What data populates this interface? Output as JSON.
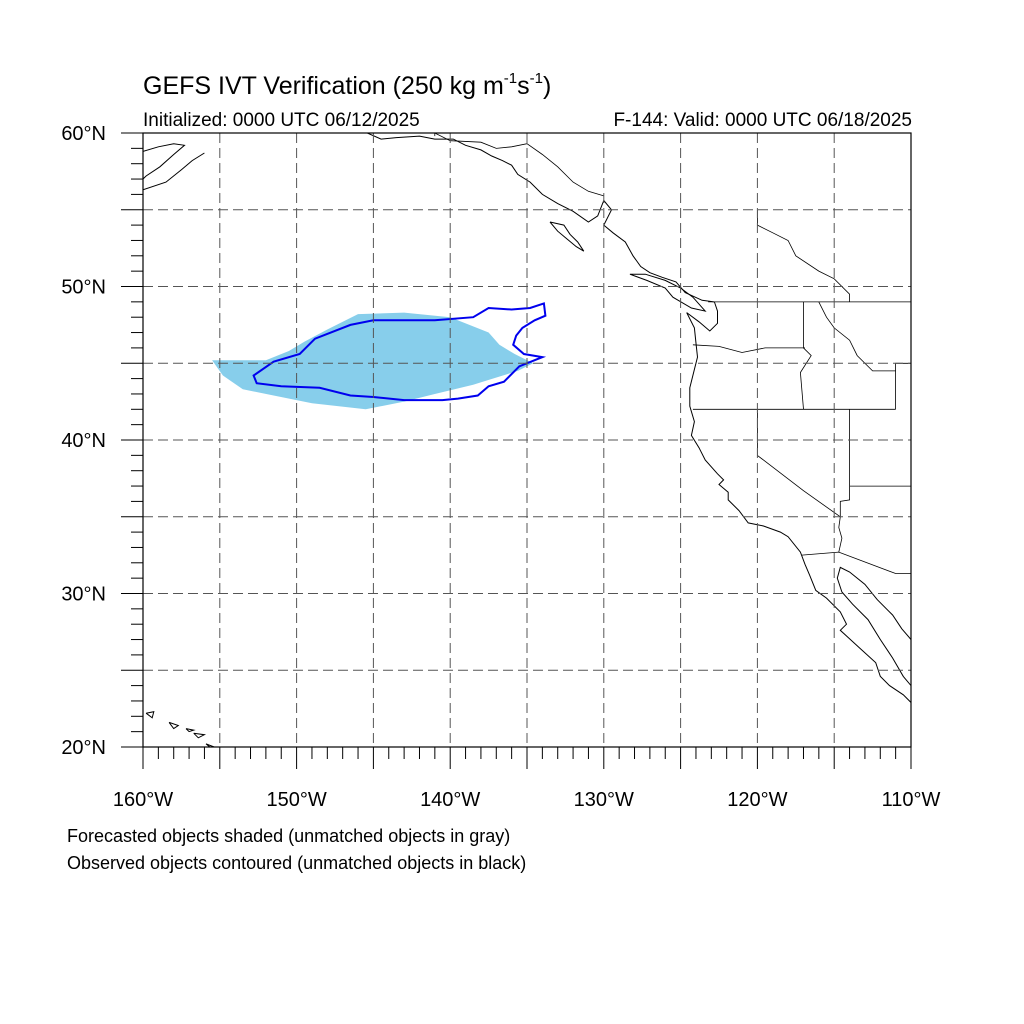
{
  "header": {
    "title_main": "GEFS IVT Verification (250 kg m",
    "title_exp1": "-1",
    "title_mid": "s",
    "title_exp2": "-1",
    "title_end": ")",
    "initialized": "Initialized: 0000 UTC 06/12/2025",
    "valid": "F-144: Valid: 0000 UTC 06/18/2025"
  },
  "map": {
    "projection": "cylindrical-equidistant",
    "lon_range": [
      -160,
      -110
    ],
    "lat_range": [
      20,
      60
    ],
    "gridlines": "dashed",
    "lon_labels": [
      {
        "lon": -160,
        "text": "160°W"
      },
      {
        "lon": -150,
        "text": "150°W"
      },
      {
        "lon": -140,
        "text": "140°W"
      },
      {
        "lon": -130,
        "text": "130°W"
      },
      {
        "lon": -120,
        "text": "120°W"
      },
      {
        "lon": -110,
        "text": "110°W"
      }
    ],
    "lat_labels": [
      {
        "lat": 60,
        "text": "60°N"
      },
      {
        "lat": 50,
        "text": "50°N"
      },
      {
        "lat": 40,
        "text": "40°N"
      },
      {
        "lat": 30,
        "text": "30°N"
      },
      {
        "lat": 20,
        "text": "20°N"
      }
    ],
    "forecast_object": {
      "fill_color": "#87ceeb",
      "outline": [
        [
          -155.5,
          45.2
        ],
        [
          -152,
          45.2
        ],
        [
          -150.5,
          45.8
        ],
        [
          -149.5,
          46.4
        ],
        [
          -148,
          47.2
        ],
        [
          -146,
          48.2
        ],
        [
          -143,
          48.3
        ],
        [
          -140,
          48.0
        ],
        [
          -137.5,
          47.0
        ],
        [
          -136.8,
          46.2
        ],
        [
          -135.8,
          45.6
        ],
        [
          -134.6,
          45.0
        ],
        [
          -135.6,
          44.5
        ],
        [
          -138.5,
          43.6
        ],
        [
          -141,
          43.0
        ],
        [
          -143,
          42.5
        ],
        [
          -145.5,
          42.0
        ],
        [
          -149,
          42.4
        ],
        [
          -151.5,
          42.9
        ],
        [
          -153.5,
          43.3
        ],
        [
          -154.8,
          44.2
        ]
      ]
    },
    "observed_object": {
      "line_color": "#0000ee",
      "outline": [
        [
          -152.8,
          44.2
        ],
        [
          -151.5,
          45.1
        ],
        [
          -149.8,
          45.6
        ],
        [
          -148.8,
          46.6
        ],
        [
          -146.5,
          47.5
        ],
        [
          -145,
          47.8
        ],
        [
          -141,
          47.8
        ],
        [
          -138.5,
          48.0
        ],
        [
          -137.5,
          48.6
        ],
        [
          -136,
          48.5
        ],
        [
          -134.8,
          48.6
        ],
        [
          -133.9,
          48.9
        ],
        [
          -133.8,
          48.1
        ],
        [
          -134.5,
          47.8
        ],
        [
          -135.3,
          47.3
        ],
        [
          -135.7,
          46.8
        ],
        [
          -135.9,
          46.2
        ],
        [
          -135.2,
          45.6
        ],
        [
          -134.0,
          45.4
        ],
        [
          -135.5,
          44.8
        ],
        [
          -136.5,
          43.8
        ],
        [
          -137.5,
          43.5
        ],
        [
          -138.2,
          42.9
        ],
        [
          -139.5,
          42.7
        ],
        [
          -140.5,
          42.6
        ],
        [
          -141.5,
          42.6
        ],
        [
          -143,
          42.6
        ],
        [
          -145,
          42.8
        ],
        [
          -146.5,
          42.9
        ],
        [
          -148.5,
          43.4
        ],
        [
          -151,
          43.5
        ],
        [
          -152.6,
          43.7
        ]
      ]
    },
    "coast_segments": [
      [
        [
          -160,
          58.8
        ],
        [
          -159,
          59.1
        ],
        [
          -158,
          59.3
        ],
        [
          -157.3,
          59.2
        ],
        [
          -158,
          58.6
        ],
        [
          -158.9,
          57.8
        ],
        [
          -159.8,
          57.2
        ],
        [
          -160,
          57.0
        ]
      ],
      [
        [
          -160,
          56.3
        ],
        [
          -158.5,
          56.8
        ],
        [
          -157.5,
          57.6
        ],
        [
          -156.8,
          58.2
        ],
        [
          -156.0,
          58.7
        ]
      ],
      [
        [
          -145.4,
          60
        ],
        [
          -144.5,
          59.6
        ],
        [
          -143.5,
          59.7
        ],
        [
          -142,
          59.8
        ],
        [
          -141,
          59.6
        ],
        [
          -139.8,
          59.6
        ],
        [
          -139,
          59.2
        ],
        [
          -138,
          58.9
        ],
        [
          -137.3,
          58.5
        ],
        [
          -136.6,
          58.2
        ],
        [
          -136.0,
          57.9
        ],
        [
          -135.6,
          57.3
        ],
        [
          -134.8,
          56.8
        ],
        [
          -134.0,
          56.0
        ],
        [
          -133.0,
          55.4
        ],
        [
          -132.0,
          54.9
        ],
        [
          -131.0,
          54.2
        ],
        [
          -130.4,
          54.6
        ],
        [
          -130.0,
          55.6
        ],
        [
          -129.5,
          55.0
        ],
        [
          -130.0,
          54.0
        ],
        [
          -129.4,
          53.5
        ],
        [
          -128.6,
          52.9
        ],
        [
          -128.1,
          52.0
        ],
        [
          -127.6,
          51.3
        ],
        [
          -127.0,
          50.9
        ],
        [
          -126.2,
          50.6
        ],
        [
          -125.3,
          50.3
        ],
        [
          -124.7,
          49.6
        ],
        [
          -123.6,
          49.1
        ],
        [
          -122.8,
          49.0
        ],
        [
          -122.6,
          48.4
        ],
        [
          -122.6,
          47.6
        ],
        [
          -123.1,
          47.1
        ],
        [
          -123.8,
          47.7
        ],
        [
          -124.6,
          48.3
        ],
        [
          -124.1,
          47.3
        ],
        [
          -124.0,
          46.3
        ],
        [
          -123.9,
          45.4
        ],
        [
          -124.1,
          44.6
        ],
        [
          -124.4,
          43.4
        ],
        [
          -124.4,
          42.2
        ],
        [
          -124.1,
          41.2
        ],
        [
          -124.3,
          40.3
        ],
        [
          -123.8,
          39.5
        ],
        [
          -123.4,
          38.7
        ],
        [
          -122.6,
          37.8
        ],
        [
          -122.2,
          37.4
        ],
        [
          -122.5,
          37.1
        ],
        [
          -121.9,
          36.6
        ],
        [
          -121.9,
          36.1
        ],
        [
          -121.2,
          35.4
        ],
        [
          -120.6,
          34.6
        ],
        [
          -119.6,
          34.4
        ],
        [
          -118.5,
          34.0
        ],
        [
          -118.0,
          33.7
        ],
        [
          -117.2,
          32.7
        ],
        [
          -116.9,
          31.9
        ],
        [
          -116.6,
          31.2
        ],
        [
          -116.2,
          30.2
        ],
        [
          -115.5,
          29.7
        ],
        [
          -114.6,
          28.8
        ],
        [
          -114.2,
          28.0
        ],
        [
          -114.6,
          27.6
        ],
        [
          -113.4,
          26.5
        ],
        [
          -112.3,
          25.5
        ],
        [
          -112.0,
          24.6
        ],
        [
          -111.4,
          24.0
        ],
        [
          -110.5,
          23.4
        ],
        [
          -110.0,
          22.9
        ]
      ],
      [
        [
          -110,
          27.0
        ],
        [
          -110.6,
          27.7
        ],
        [
          -111.2,
          28.6
        ],
        [
          -112.2,
          29.6
        ],
        [
          -113.0,
          30.6
        ],
        [
          -114.0,
          31.4
        ],
        [
          -114.6,
          31.7
        ],
        [
          -114.8,
          31.0
        ],
        [
          -114.5,
          30.1
        ],
        [
          -113.8,
          29.3
        ],
        [
          -112.8,
          28.3
        ],
        [
          -112.0,
          27.0
        ],
        [
          -111.2,
          25.8
        ],
        [
          -110.5,
          24.6
        ],
        [
          -110.0,
          24.0
        ]
      ],
      [
        [
          -133.5,
          54.2
        ],
        [
          -132.6,
          54.0
        ],
        [
          -132.2,
          53.4
        ],
        [
          -131.7,
          52.9
        ],
        [
          -131.3,
          52.3
        ],
        [
          -131.8,
          52.6
        ],
        [
          -132.4,
          53.1
        ],
        [
          -133.0,
          53.6
        ],
        [
          -133.5,
          54.2
        ]
      ],
      [
        [
          -128.3,
          50.8
        ],
        [
          -127.2,
          50.4
        ],
        [
          -126.0,
          49.9
        ],
        [
          -125.5,
          49.3
        ],
        [
          -124.3,
          48.6
        ],
        [
          -123.4,
          48.4
        ],
        [
          -124.2,
          49.3
        ],
        [
          -125.0,
          49.9
        ],
        [
          -126.0,
          50.4
        ],
        [
          -127.3,
          50.8
        ],
        [
          -128.3,
          50.8
        ]
      ],
      [
        [
          -159.8,
          22.2
        ],
        [
          -159.3,
          22.3
        ],
        [
          -159.4,
          21.9
        ],
        [
          -159.8,
          22.2
        ]
      ],
      [
        [
          -158.3,
          21.6
        ],
        [
          -157.7,
          21.4
        ],
        [
          -158.0,
          21.2
        ],
        [
          -158.3,
          21.6
        ]
      ],
      [
        [
          -157.2,
          21.2
        ],
        [
          -156.7,
          21.1
        ],
        [
          -157.0,
          21.0
        ],
        [
          -157.2,
          21.2
        ]
      ],
      [
        [
          -156.7,
          20.9
        ],
        [
          -156.0,
          20.8
        ],
        [
          -156.4,
          20.6
        ],
        [
          -156.7,
          20.9
        ]
      ],
      [
        [
          -155.9,
          20.2
        ],
        [
          -155.1,
          19.9
        ],
        [
          -155.4,
          19.8
        ],
        [
          -155.9,
          20.2
        ]
      ]
    ],
    "border_segments": [
      [
        [
          -141,
          60
        ],
        [
          -141,
          59.8
        ]
      ],
      [
        [
          -141,
          60
        ],
        [
          -140,
          59.5
        ],
        [
          -138,
          59.4
        ],
        [
          -137,
          59.0
        ],
        [
          -136,
          59.1
        ],
        [
          -135,
          59.3
        ],
        [
          -134,
          58.6
        ],
        [
          -133,
          57.8
        ],
        [
          -132,
          56.8
        ],
        [
          -131,
          56.2
        ],
        [
          -130,
          55.9
        ]
      ],
      [
        [
          -123.2,
          49.0
        ],
        [
          -110,
          49.0
        ]
      ],
      [
        [
          -124.2,
          42.0
        ],
        [
          -111,
          42.0
        ]
      ],
      [
        [
          -124.2,
          46.2
        ],
        [
          -122.5,
          46.1
        ],
        [
          -121,
          45.7
        ],
        [
          -119.5,
          46.0
        ],
        [
          -116.9,
          46.0
        ]
      ],
      [
        [
          -117.0,
          49.0
        ],
        [
          -117.0,
          46.0
        ],
        [
          -116.5,
          45.5
        ],
        [
          -117.2,
          44.4
        ],
        [
          -117.0,
          42.0
        ]
      ],
      [
        [
          -120.0,
          42.0
        ],
        [
          -120.0,
          39.0
        ],
        [
          -117.0,
          36.7
        ],
        [
          -114.6,
          35.0
        ]
      ],
      [
        [
          -114.6,
          35.0
        ],
        [
          -114.6,
          36.0
        ],
        [
          -114.0,
          36.1
        ],
        [
          -114.0,
          42.0
        ]
      ],
      [
        [
          -111,
          42.0
        ],
        [
          -111,
          45.0
        ],
        [
          -110,
          45.0
        ]
      ],
      [
        [
          -114.0,
          37.0
        ],
        [
          -110,
          37.0
        ]
      ],
      [
        [
          -114.6,
          35.0
        ],
        [
          -114.7,
          34.3
        ],
        [
          -114.5,
          33.6
        ],
        [
          -114.7,
          32.7
        ]
      ],
      [
        [
          -117.1,
          32.5
        ],
        [
          -114.7,
          32.7
        ],
        [
          -111.0,
          31.3
        ],
        [
          -110,
          31.3
        ]
      ],
      [
        [
          -116.0,
          49.0
        ],
        [
          -115.5,
          48.0
        ],
        [
          -115.0,
          47.3
        ],
        [
          -114.0,
          46.5
        ],
        [
          -113.5,
          45.5
        ],
        [
          -112.5,
          44.5
        ],
        [
          -111.0,
          44.5
        ]
      ],
      [
        [
          -120.0,
          55.0
        ],
        [
          -120.0,
          54.0
        ],
        [
          -119.0,
          53.5
        ],
        [
          -118.0,
          53.0
        ],
        [
          -117.5,
          52.0
        ],
        [
          -116.0,
          51.0
        ],
        [
          -115.0,
          50.5
        ],
        [
          -114.0,
          49.5
        ],
        [
          -114.0,
          49.0
        ]
      ]
    ]
  },
  "captions": {
    "line1": "Forecasted objects shaded (unmatched objects in gray)",
    "line2": "Observed objects contoured (unmatched objects in black)"
  }
}
